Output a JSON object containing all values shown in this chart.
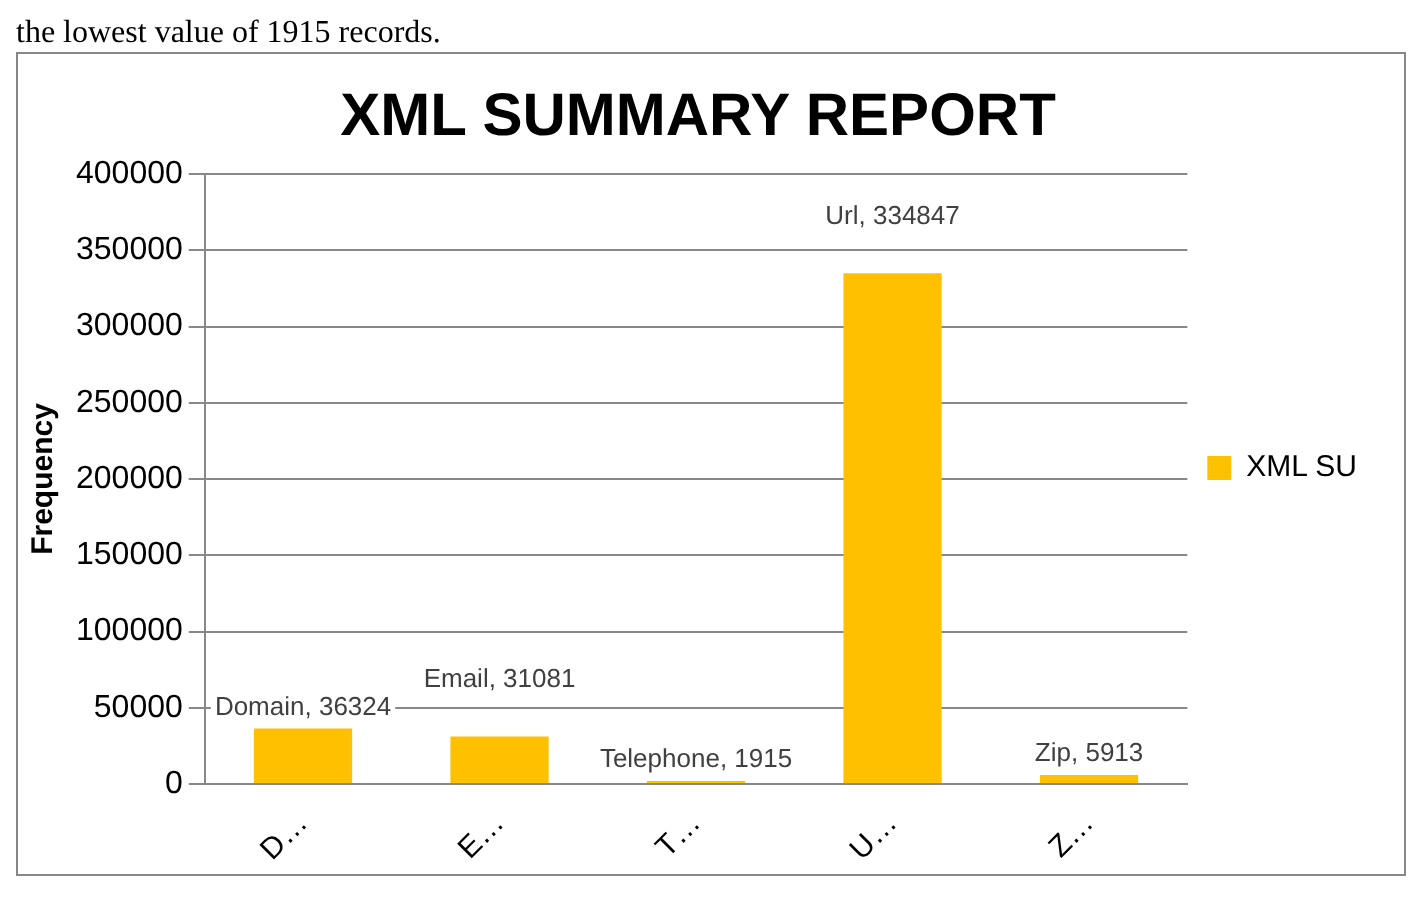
{
  "chart_data": {
    "type": "bar",
    "title": "XML SUMMARY REPORT",
    "ylabel": "Frequency",
    "annotations": [
      "the lowest value of 1915 records."
    ],
    "categories": [
      "D…",
      "E…",
      "T…",
      "U…",
      "Z…"
    ],
    "series": [
      {
        "name": "XML SU",
        "color": "#ffc000",
        "values": [
          36324,
          31081,
          1915,
          334847,
          5913
        ],
        "value_labels": [
          "Domain, 36324",
          "Email, 31081",
          "Telephone, 1915",
          "Url, 334847",
          "Zip, 5913"
        ]
      }
    ],
    "ylim": [
      0,
      400000
    ],
    "yticks": [
      0,
      50000,
      100000,
      150000,
      200000,
      250000,
      300000,
      350000,
      400000
    ],
    "grid": "y",
    "legend": "right"
  }
}
